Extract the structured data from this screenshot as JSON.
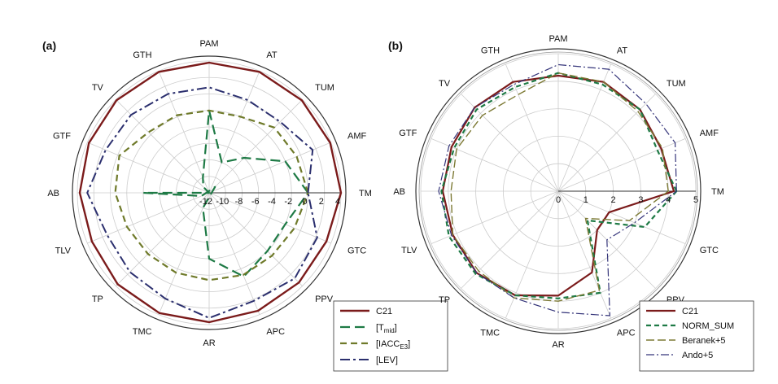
{
  "colors": {
    "C21": "#7b1b1b",
    "T_mid": "#1e7a45",
    "IACC_E3": "#6f7a2a",
    "LEV": "#2b2f6e",
    "NORM_SUM": "#1e7a45",
    "Beranek": "#7d7a35",
    "Ando": "#35357a",
    "grid": "#cccccc",
    "axis_line": "#333333"
  },
  "chart_data": [
    {
      "type": "radar",
      "panel_label": "(a)",
      "axes": [
        "TM",
        "AMF",
        "TUM",
        "AT",
        "PAM",
        "GTH",
        "TV",
        "GTF",
        "AB",
        "TLV",
        "TP",
        "TMC",
        "AR",
        "APC",
        "PPV",
        "GTC"
      ],
      "rlim": [
        -12,
        4
      ],
      "ticks": [
        -12,
        -10,
        -8,
        -6,
        -4,
        -2,
        0,
        2,
        4
      ],
      "tick_labels": [
        "-12",
        "-10",
        "-8",
        "-6",
        "-4",
        "-2",
        "0",
        "2",
        "4"
      ],
      "grid": true,
      "legend_position": "bottom-right",
      "series": [
        {
          "name": "C21",
          "values": [
            4,
            3.9,
            3.9,
            3.9,
            3.8,
            3.9,
            3.9,
            3.8,
            3.7,
            3.4,
            3.7,
            3.8,
            3.7,
            3.5,
            3.4,
            3.4
          ]
        },
        {
          "name": "[T_mid]",
          "name_main": "[T",
          "name_sub": "mid",
          "name_end": "]",
          "values": [
            0,
            -2,
            -6,
            -8,
            -2,
            -10,
            -11,
            -12,
            -4,
            -11,
            -13,
            -10,
            -4,
            -1,
            -2,
            -2
          ]
        },
        {
          "name": "[IACC_E3]",
          "name_main": "[IACC",
          "name_sub": "E3",
          "name_end": "]",
          "values": [
            0,
            -0.5,
            -0.8,
            -2,
            -2,
            -1.8,
            -1.6,
            -0.2,
            -0.6,
            -1.2,
            -1.5,
            -1.5,
            -1.4,
            -1.2,
            -1.2,
            -0.8
          ]
        },
        {
          "name": "[LEV]",
          "name_main": "[LEV",
          "name_sub": "",
          "name_end": "]",
          "values": [
            0,
            1.6,
            0.2,
            0.2,
            0.8,
            1.0,
            1.4,
            1.6,
            2.8,
            1.4,
            1.6,
            1.9,
            3.2,
            2.2,
            2.7,
            2.2
          ]
        }
      ]
    },
    {
      "type": "radar",
      "panel_label": "(b)",
      "axes": [
        "TM",
        "AMF",
        "TUM",
        "AT",
        "PAM",
        "GTH",
        "TV",
        "GTF",
        "AB",
        "TLV",
        "TP",
        "TMC",
        "AR",
        "APC",
        "PPV",
        "GTC"
      ],
      "rlim": [
        0,
        5
      ],
      "ticks": [
        0,
        1,
        2,
        3,
        4,
        5
      ],
      "tick_labels": [
        "0",
        "1",
        "2",
        "3",
        "4",
        "5"
      ],
      "grid": true,
      "legend_position": "bottom-right",
      "series": [
        {
          "name": "C21",
          "name_main": "C21",
          "name_sub": "",
          "name_end": "",
          "values": [
            4.2,
            4.05,
            4.2,
            4.3,
            4.2,
            4.3,
            4.3,
            4.2,
            4.2,
            4.15,
            4.2,
            4.1,
            3.8,
            3.2,
            2.0,
            2.0
          ]
        },
        {
          "name": "NORM_SUM",
          "name_main": "NORM_SUM",
          "name_sub": "",
          "name_end": "",
          "values": [
            4.3,
            3.9,
            4.2,
            4.2,
            4.3,
            4.1,
            4.2,
            4.1,
            4.25,
            4.3,
            4.25,
            4.1,
            3.9,
            4.0,
            1.5,
            3.4
          ]
        },
        {
          "name": "Beranek+5",
          "name_main": "Beranek+5",
          "name_sub": "",
          "name_end": "",
          "values": [
            4.0,
            4.1,
            4.1,
            4.3,
            4.3,
            3.8,
            3.9,
            4.0,
            3.9,
            4.15,
            4.1,
            4.2,
            4.0,
            3.9,
            1.4,
            2.8
          ]
        },
        {
          "name": "Ando+5",
          "name_main": "Ando+5",
          "name_sub": "",
          "name_end": "",
          "values": [
            4.3,
            4.6,
            4.5,
            4.8,
            4.6,
            4.2,
            4.3,
            4.3,
            4.35,
            4.2,
            4.2,
            4.2,
            4.4,
            4.9,
            2.5,
            3.0
          ]
        }
      ]
    }
  ]
}
